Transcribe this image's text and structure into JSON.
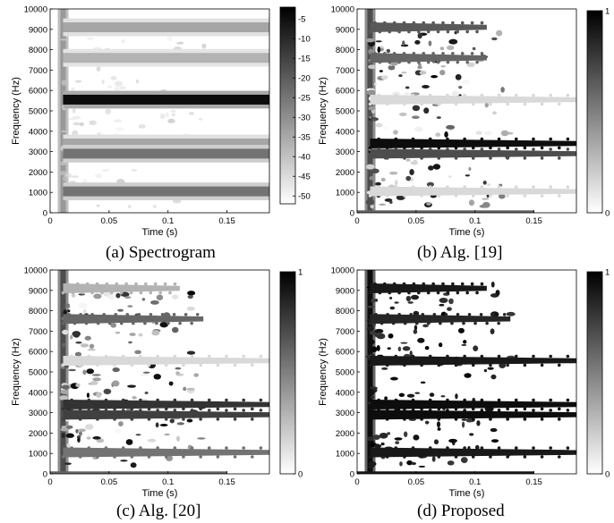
{
  "panels": [
    {
      "caption": "(a) Spectrogram",
      "chart_data": {
        "type": "heatmap",
        "xlabel": "Time (s)",
        "ylabel": "Frequency (Hz)",
        "xlim": [
          0,
          0.186
        ],
        "ylim": [
          0,
          10000
        ],
        "xticks": [
          "0",
          "0.05",
          "0.1",
          "0.15"
        ],
        "xtick_values": [
          0,
          0.05,
          0.1,
          0.15
        ],
        "yticks": [
          "0",
          "1000",
          "2000",
          "3000",
          "4000",
          "5000",
          "6000",
          "7000",
          "8000",
          "9000",
          "10000"
        ],
        "ytick_values": [
          0,
          1000,
          2000,
          3000,
          4000,
          5000,
          6000,
          7000,
          8000,
          9000,
          10000
        ],
        "colorbar": {
          "ticks": [
            "-5",
            "-10",
            "-15",
            "-20",
            "-25",
            "-30",
            "-35",
            "-40",
            "-45",
            "-50"
          ],
          "tick_values": [
            -5,
            -10,
            -15,
            -20,
            -25,
            -30,
            -35,
            -40,
            -45,
            -50
          ],
          "range": [
            -52,
            -2
          ],
          "dark_high": true
        },
        "onset_time": 0.011,
        "bands": [
          {
            "freq": 9100,
            "intensity": 0.35
          },
          {
            "freq": 7600,
            "intensity": 0.3
          },
          {
            "freq": 5550,
            "intensity": 0.95
          },
          {
            "freq": 3400,
            "intensity": 0.35
          },
          {
            "freq": 2900,
            "intensity": 0.55
          },
          {
            "freq": 1050,
            "intensity": 0.55
          }
        ]
      }
    },
    {
      "caption": "(b) Alg. [19]",
      "chart_data": {
        "type": "heatmap",
        "xlabel": "Time (s)",
        "ylabel": "Frequency (Hz)",
        "xlim": [
          0,
          0.186
        ],
        "ylim": [
          0,
          10000
        ],
        "xticks": [
          "0",
          "0.05",
          "0.1",
          "0.15"
        ],
        "xtick_values": [
          0,
          0.05,
          0.1,
          0.15
        ],
        "yticks": [
          "0",
          "1000",
          "2000",
          "3000",
          "4000",
          "5000",
          "6000",
          "7000",
          "8000",
          "9000",
          "10000"
        ],
        "ytick_values": [
          0,
          1000,
          2000,
          3000,
          4000,
          5000,
          6000,
          7000,
          8000,
          9000,
          10000
        ],
        "colorbar": {
          "ticks": [
            "1",
            "0"
          ],
          "tick_values": [
            1,
            0
          ],
          "range": [
            0,
            1
          ],
          "dark_high": true
        },
        "onset_time": 0.011,
        "bands": [
          {
            "freq": 9100,
            "intensity": 0.65,
            "end": 0.11
          },
          {
            "freq": 7600,
            "intensity": 0.6,
            "end": 0.11
          },
          {
            "freq": 5550,
            "intensity": 0.15,
            "end": 0.186
          },
          {
            "freq": 3400,
            "intensity": 0.95,
            "end": 0.186
          },
          {
            "freq": 2900,
            "intensity": 0.7,
            "end": 0.186
          },
          {
            "freq": 1050,
            "intensity": 0.15,
            "end": 0.186
          }
        ]
      }
    },
    {
      "caption": "(c) Alg. [20]",
      "chart_data": {
        "type": "heatmap",
        "xlabel": "Time (s)",
        "ylabel": "Frequency (Hz)",
        "xlim": [
          0,
          0.186
        ],
        "ylim": [
          0,
          10000
        ],
        "xticks": [
          "0",
          "0.05",
          "0.1",
          "0.15"
        ],
        "xtick_values": [
          0,
          0.05,
          0.1,
          0.15
        ],
        "yticks": [
          "0",
          "1000",
          "2000",
          "3000",
          "4000",
          "5000",
          "6000",
          "7000",
          "8000",
          "9000",
          "10000"
        ],
        "ytick_values": [
          0,
          1000,
          2000,
          3000,
          4000,
          5000,
          6000,
          7000,
          8000,
          9000,
          10000
        ],
        "colorbar": {
          "ticks": [
            "1",
            "0"
          ],
          "tick_values": [
            1,
            0
          ],
          "range": [
            0,
            1
          ],
          "dark_high": true
        },
        "onset_time": 0.011,
        "bands": [
          {
            "freq": 9100,
            "intensity": 0.3,
            "end": 0.11
          },
          {
            "freq": 7600,
            "intensity": 0.6,
            "end": 0.13
          },
          {
            "freq": 5550,
            "intensity": 0.15,
            "end": 0.186
          },
          {
            "freq": 3400,
            "intensity": 0.8,
            "end": 0.186
          },
          {
            "freq": 2900,
            "intensity": 0.75,
            "end": 0.186
          },
          {
            "freq": 1050,
            "intensity": 0.55,
            "end": 0.186
          }
        ]
      }
    },
    {
      "caption": "(d) Proposed",
      "chart_data": {
        "type": "heatmap",
        "xlabel": "Time (s)",
        "ylabel": "Frequency (Hz)",
        "xlim": [
          0,
          0.186
        ],
        "ylim": [
          0,
          10000
        ],
        "xticks": [
          "0",
          "0.05",
          "0.1",
          "0.15"
        ],
        "xtick_values": [
          0,
          0.05,
          0.1,
          0.15
        ],
        "yticks": [
          "0",
          "1000",
          "2000",
          "3000",
          "4000",
          "5000",
          "6000",
          "7000",
          "8000",
          "9000",
          "10000"
        ],
        "ytick_values": [
          0,
          1000,
          2000,
          3000,
          4000,
          5000,
          6000,
          7000,
          8000,
          9000,
          10000
        ],
        "colorbar": {
          "ticks": [
            "1",
            "0"
          ],
          "tick_values": [
            1,
            0
          ],
          "range": [
            0,
            1
          ],
          "dark_high": true
        },
        "onset_time": 0.011,
        "bands": [
          {
            "freq": 9100,
            "intensity": 0.9,
            "end": 0.11
          },
          {
            "freq": 7600,
            "intensity": 0.85,
            "end": 0.13
          },
          {
            "freq": 5550,
            "intensity": 0.9,
            "end": 0.186
          },
          {
            "freq": 3400,
            "intensity": 0.95,
            "end": 0.186
          },
          {
            "freq": 2900,
            "intensity": 0.95,
            "end": 0.186
          },
          {
            "freq": 1050,
            "intensity": 0.9,
            "end": 0.186
          }
        ]
      }
    }
  ]
}
